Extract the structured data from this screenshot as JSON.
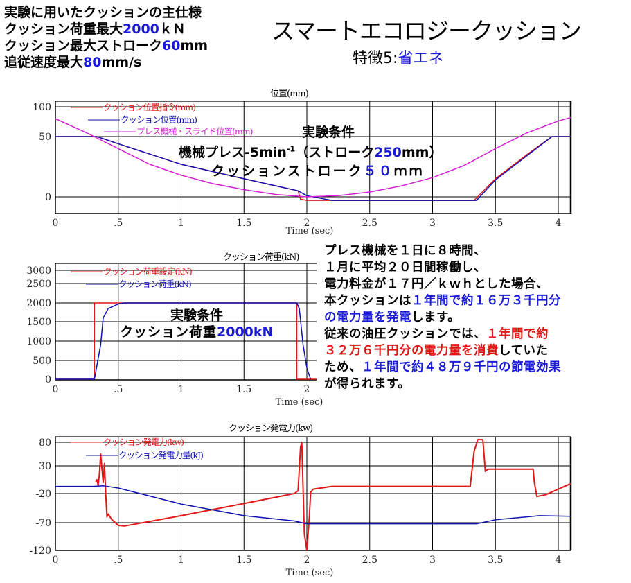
{
  "spec": {
    "heading": "実験に用いたクッションの主仕様",
    "load": {
      "prefix": "クッション荷重最大",
      "value": "2000",
      "unit": "ｋＮ"
    },
    "stroke": {
      "prefix": "クッション最大ストローク",
      "value": "60",
      "unit": "mm"
    },
    "speed": {
      "prefix": "追従速度最大",
      "value": "80",
      "unit": "mm/s"
    }
  },
  "header": {
    "title": "スマートエコロジークッション",
    "subtitle_prefix": "特徴5:",
    "subtitle_highlight": "省エネ"
  },
  "position_conditions": {
    "heading": "実験条件",
    "press_prefix": "機械プレス-5min",
    "press_sup": "-1",
    "press_mid": "（ストローク",
    "press_value": "250",
    "press_suffix": "mm）",
    "cushion_prefix": "クッションストローク",
    "cushion_value": "５０",
    "cushion_suffix": "ｍｍ"
  },
  "load_conditions": {
    "heading": "実験条件",
    "prefix": "クッション荷重",
    "value": "2000kN"
  },
  "note": {
    "l1": "プレス機械を１日に８時間、",
    "l2": "１月に平均２０日間稼働し、",
    "l3": "電力料金が１７円／ｋｗｈとした場合、",
    "l4_a": "本クッションは",
    "l4_b": "１年間で約１６万３千円分",
    "l5_a": "の電力量を発電",
    "l5_b": "します。",
    "l6_a": "従来の油圧クッションでは、",
    "l6_b": "１年間で約",
    "l7_a": "３２万６千円分の電力量を消費",
    "l7_b": "していた",
    "l8_a": "ため、",
    "l8_b": "１年間で約４８万９千円の節電効果",
    "l9": "が得られます。"
  },
  "colors": {
    "red": "#e01818",
    "blue": "#1010b0",
    "magenta": "#d020d0",
    "highlight_blue": "#1a1ad6"
  },
  "chart_data": [
    {
      "type": "line",
      "title": "位置(mm)",
      "xlabel": "Time (sec)",
      "ylabel": "",
      "xlim": [
        0,
        4.1
      ],
      "ylim": [
        -10,
        100
      ],
      "x_ticks": [
        "0",
        ".5",
        "1",
        "1.5",
        "2",
        "2.5",
        "3",
        "3.5",
        "4"
      ],
      "y_ticks": [
        "100",
        "50",
        "0"
      ],
      "grid": true,
      "legend_position": "top-left",
      "series": [
        {
          "name": "クッション位置指令(mm)",
          "color": "#e01818",
          "x": [
            0,
            0.33,
            0.5,
            1.0,
            1.5,
            1.93,
            1.95,
            2.0,
            3.33,
            3.5,
            3.75,
            3.95,
            4.1
          ],
          "values": [
            50,
            50,
            44,
            27,
            15,
            5,
            -2,
            -3,
            -3,
            15,
            35,
            50,
            50
          ]
        },
        {
          "name": "クッション位置(mm)",
          "color": "#1010b0",
          "x": [
            0,
            0.33,
            0.5,
            1.0,
            1.5,
            1.93,
            2.0,
            2.2,
            3.35,
            3.5,
            3.75,
            3.95,
            4.1
          ],
          "values": [
            50,
            50,
            44,
            27,
            15,
            5,
            1,
            -3,
            -3,
            14,
            34,
            50,
            50
          ]
        },
        {
          "name": "プレス機械・スライド位置(mm)",
          "color": "#d020d0",
          "x": [
            0,
            0.25,
            0.5,
            0.75,
            1.0,
            1.25,
            1.5,
            1.75,
            2.0,
            2.25,
            2.5,
            2.75,
            3.0,
            3.25,
            3.5,
            3.75,
            4.0,
            4.1
          ],
          "values": [
            80,
            56,
            40,
            27,
            18,
            11,
            6,
            2,
            0,
            1,
            4,
            9,
            16,
            26,
            40,
            56,
            76,
            82
          ]
        }
      ]
    },
    {
      "type": "line",
      "title": "クッション荷重(kN)",
      "xlabel": "Time (sec)",
      "ylabel": "",
      "xlim": [
        0,
        2.08
      ],
      "ylim": [
        0,
        3000
      ],
      "x_ticks": [
        "0",
        ".5",
        "1",
        "1.5",
        "2"
      ],
      "y_ticks": [
        "3000",
        "2500",
        "2000",
        "1500",
        "1000",
        "500",
        "0"
      ],
      "grid": true,
      "legend_position": "top-left",
      "series": [
        {
          "name": "クッション荷重設定(kN)",
          "color": "#e01818",
          "x": [
            0,
            0.31,
            0.31,
            1.92,
            1.92,
            2.08
          ],
          "values": [
            0,
            0,
            2000,
            2000,
            0,
            0
          ]
        },
        {
          "name": "クッション荷重(kN)",
          "color": "#1010b0",
          "x": [
            0,
            0.31,
            0.36,
            0.38,
            0.42,
            0.5,
            0.55,
            1.92,
            1.94,
            1.97,
            2.0,
            2.03
          ],
          "values": [
            0,
            0,
            900,
            1600,
            1850,
            1970,
            2000,
            2000,
            1850,
            900,
            300,
            0
          ]
        }
      ]
    },
    {
      "type": "line",
      "title": "クッション発電力(kw)",
      "xlabel": "Time (sec)",
      "ylabel": "",
      "xlim": [
        0,
        4.1
      ],
      "ylim": [
        -120,
        80
      ],
      "x_ticks": [
        "0",
        ".5",
        "1",
        "1.5",
        "2",
        "2.5",
        "3",
        "3.5",
        "4"
      ],
      "y_ticks": [
        "80",
        "30",
        "-20",
        "-70",
        "-120"
      ],
      "grid": true,
      "legend_position": "top-left",
      "series": [
        {
          "name": "クッション発電力(kw)",
          "color": "#e01818",
          "x": [
            0.32,
            0.33,
            0.34,
            0.35,
            0.36,
            0.37,
            0.38,
            0.39,
            0.4,
            0.41,
            0.42,
            0.45,
            0.5,
            0.55,
            0.6,
            1.0,
            1.5,
            1.9,
            1.93,
            1.95,
            1.96,
            1.98,
            2.0,
            2.02,
            2.03,
            2.05,
            2.2,
            3.3,
            3.33,
            3.36,
            3.4,
            3.42,
            3.44,
            3.8,
            3.81,
            3.83,
            3.9,
            4.0,
            4.1
          ],
          "values": [
            0,
            5,
            -5,
            15,
            55,
            25,
            0,
            35,
            -20,
            -60,
            -55,
            -65,
            -75,
            -76,
            -74,
            -58,
            -37,
            -20,
            -15,
            70,
            80,
            -90,
            -120,
            -60,
            -18,
            -12,
            -7,
            -7,
            60,
            85,
            85,
            20,
            24,
            24,
            0,
            -25,
            -22,
            -12,
            -2
          ]
        },
        {
          "name": "クッション発電力量(kJ)",
          "color": "#1010b0",
          "x": [
            0,
            0.3,
            0.38,
            0.5,
            1.0,
            1.5,
            1.9,
            2.0,
            3.35,
            3.5,
            3.75,
            3.85,
            4.1
          ],
          "values": [
            -7,
            -7,
            -6,
            -10,
            -38,
            -58,
            -67,
            -72,
            -72,
            -65,
            -60,
            -58,
            -59
          ]
        }
      ]
    }
  ]
}
